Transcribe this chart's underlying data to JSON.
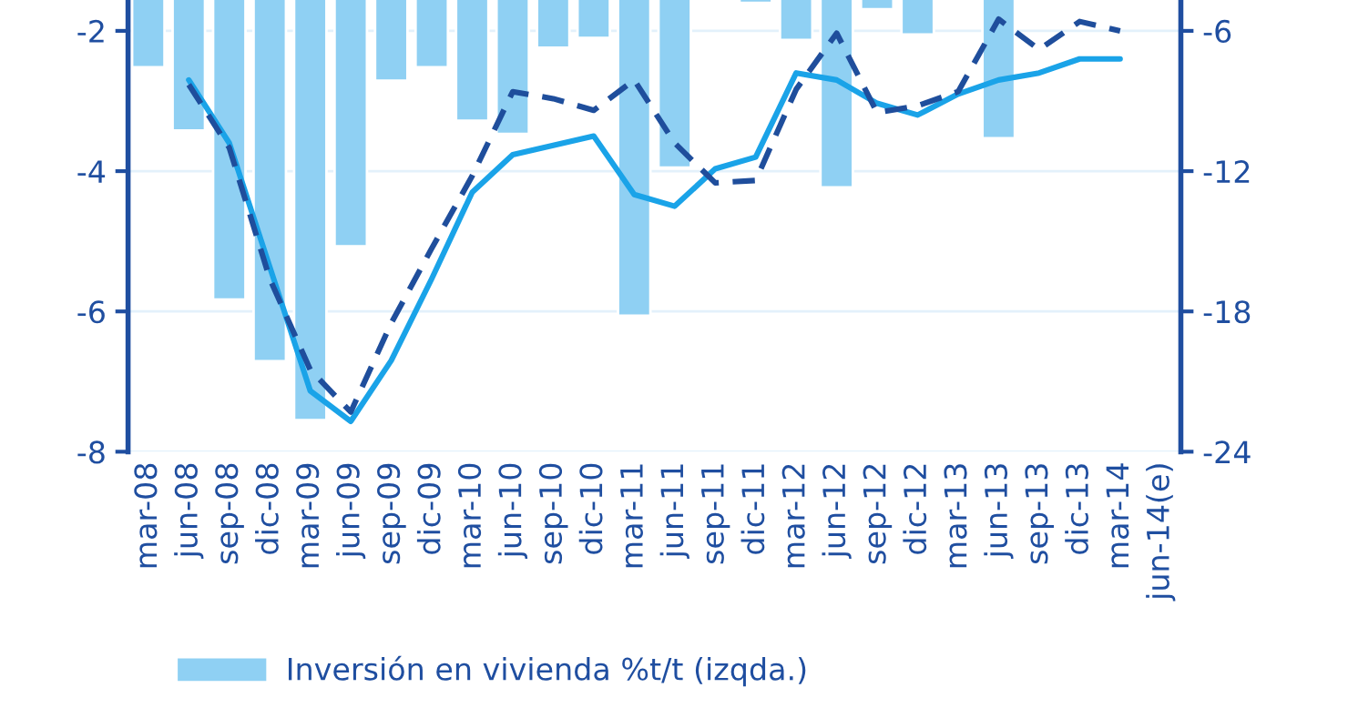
{
  "chart_data": {
    "type": "bar",
    "categories": [
      "mar-08",
      "jun-08",
      "sep-08",
      "dic-08",
      "mar-09",
      "jun-09",
      "sep-09",
      "dic-09",
      "mar-10",
      "jun-10",
      "sep-10",
      "dic-10",
      "mar-11",
      "jun-11",
      "sep-11",
      "dic-11",
      "mar-12",
      "jun-12",
      "sep-12",
      "dic-12",
      "mar-13",
      "jun-13",
      "sep-13",
      "dic-13",
      "mar-14",
      "jun-14(e)"
    ],
    "series": [
      {
        "name": "Inversión en vivienda %t/t (izqda.)",
        "color": "#8fd0f3",
        "values": [
          -2.52,
          -3.42,
          -5.83,
          -6.71,
          -7.55,
          -5.07,
          -2.71,
          -2.52,
          -3.28,
          -3.47,
          -2.24,
          -2.1,
          -6.06,
          -3.95,
          null,
          -1.6,
          -2.13,
          -4.23,
          -1.69,
          -2.05,
          null,
          -3.53,
          null,
          null,
          null,
          null
        ]
      },
      {
        "type": "line",
        "axis": "y2",
        "color": "#1aa3e8",
        "line_style": "solid",
        "values": [
          null,
          -8.1,
          -10.8,
          -16.1,
          -21.4,
          -22.7,
          -20.1,
          -16.6,
          -12.9,
          -11.3,
          -10.9,
          -10.5,
          -13,
          -13.5,
          -11.9,
          -11.4,
          -7.8,
          -8.1,
          -9.1,
          -9.6,
          -8.7,
          -8.1,
          -7.8,
          -7.2,
          -7.2,
          null
        ]
      },
      {
        "type": "line",
        "axis": "y2",
        "color": "#1f4e9c",
        "line_style": "dashed",
        "values": [
          null,
          -8.3,
          -11,
          -16.6,
          -20.5,
          -22.3,
          -18.5,
          -15.3,
          -12.2,
          -8.6,
          -8.9,
          -9.4,
          -8.1,
          -10.8,
          -12.5,
          -12.4,
          -8.5,
          -6.1,
          -9.5,
          -9.2,
          -8.6,
          -5.5,
          -6.8,
          -5.6,
          -6,
          null
        ]
      }
    ],
    "ylim": [
      -8,
      -1.56
    ],
    "yticks": [
      -2,
      -4,
      -6,
      -8
    ],
    "y2lim": [
      -24,
      -4.68
    ],
    "y2ticks": [
      -6,
      -12,
      -18,
      -24
    ],
    "grid": "y",
    "legend": "bottom"
  }
}
